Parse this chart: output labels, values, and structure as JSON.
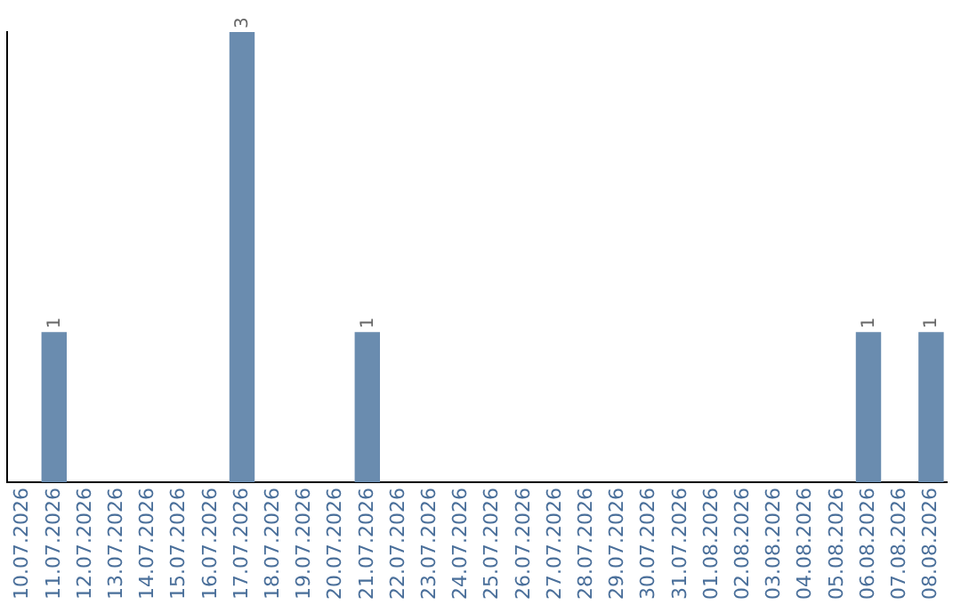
{
  "chart_data": {
    "type": "bar",
    "categories": [
      "10.07.2026",
      "11.07.2026",
      "12.07.2026",
      "13.07.2026",
      "14.07.2026",
      "15.07.2026",
      "16.07.2026",
      "17.07.2026",
      "18.07.2026",
      "19.07.2026",
      "20.07.2026",
      "21.07.2026",
      "22.07.2026",
      "23.07.2026",
      "24.07.2026",
      "25.07.2026",
      "26.07.2026",
      "27.07.2026",
      "28.07.2026",
      "29.07.2026",
      "30.07.2026",
      "31.07.2026",
      "01.08.2026",
      "02.08.2026",
      "03.08.2026",
      "04.08.2026",
      "05.08.2026",
      "06.08.2026",
      "07.08.2026",
      "08.08.2026"
    ],
    "values": [
      0,
      1,
      0,
      0,
      0,
      0,
      0,
      3,
      0,
      0,
      0,
      1,
      0,
      0,
      0,
      0,
      0,
      0,
      0,
      0,
      0,
      0,
      0,
      0,
      0,
      0,
      0,
      1,
      0,
      1
    ],
    "value_labels": [
      null,
      "1",
      null,
      null,
      null,
      null,
      null,
      "3",
      null,
      null,
      null,
      "1",
      null,
      null,
      null,
      null,
      null,
      null,
      null,
      null,
      null,
      null,
      null,
      null,
      null,
      null,
      null,
      "1",
      null,
      "1"
    ],
    "color": "#6a8caf",
    "tick_labels": "x",
    "grid": false,
    "legend": false
  }
}
